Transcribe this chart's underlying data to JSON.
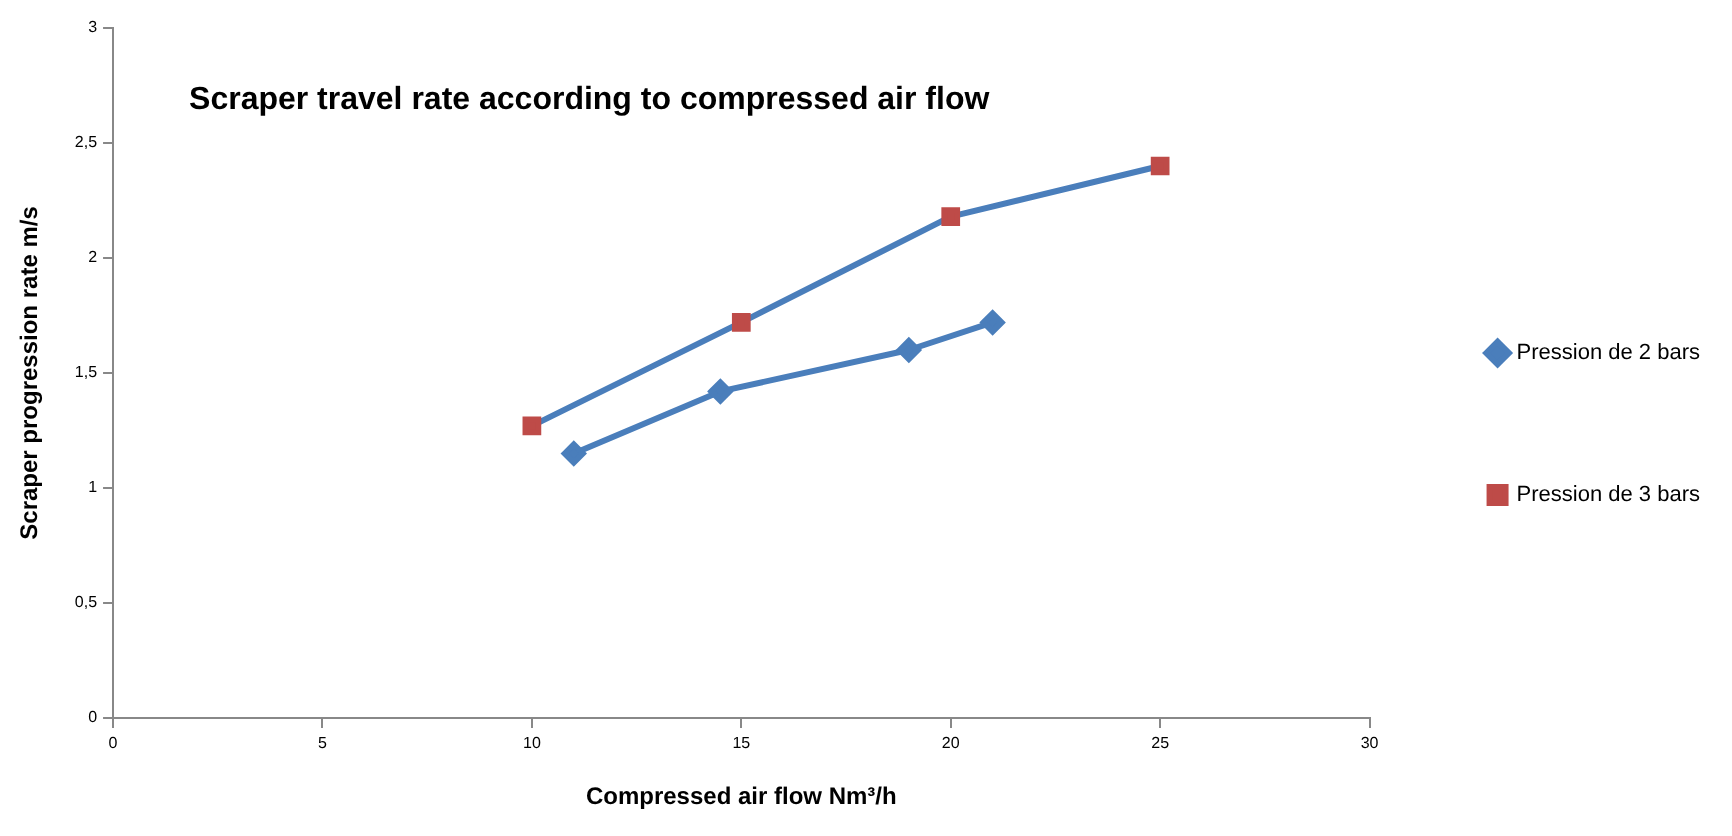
{
  "chart_data": {
    "type": "line",
    "title": "Scraper travel rate according to compressed air flow",
    "xlabel": "Compressed air flow Nm³/h",
    "ylabel": "Scraper progression rate m/s",
    "xlim": [
      0,
      30
    ],
    "xticks": [
      0,
      5,
      10,
      15,
      20,
      25,
      30
    ],
    "ylim": [
      0,
      3
    ],
    "yticks": [
      0,
      {
        "value": 0.5,
        "label": "0,5"
      },
      1,
      {
        "value": 1.5,
        "label": "1,5"
      },
      2,
      {
        "value": 2.5,
        "label": "2,5"
      },
      3
    ],
    "grid": false,
    "legend": "right",
    "line_style": "solid",
    "series": [
      {
        "name": "Pression de 2 bars",
        "color": "#4a7ebb",
        "marker": "diamond",
        "x": [
          11,
          14.5,
          19,
          21
        ],
        "values": [
          1.15,
          1.42,
          1.6,
          1.72
        ]
      },
      {
        "name": "Pression de 3 bars",
        "color": "#4a7ebb",
        "colors": [
          "#be4b48",
          "#be4b48",
          "#be4b48",
          "#be4b48"
        ],
        "marker": "square",
        "x": [
          10,
          15,
          20,
          25
        ],
        "values": [
          1.27,
          1.72,
          2.18,
          2.4
        ]
      }
    ]
  }
}
